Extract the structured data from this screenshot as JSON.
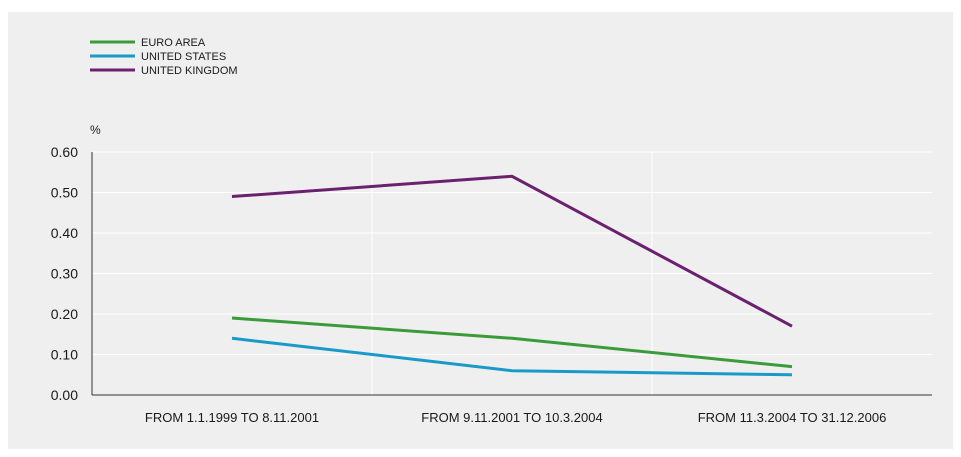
{
  "chart_data": {
    "type": "line",
    "unit": "%",
    "categories": [
      "FROM 1.1.1999 TO 8.11.2001",
      "FROM 9.11.2001 TO 10.3.2004",
      "FROM 11.3.2004 TO 31.12.2006"
    ],
    "series": [
      {
        "name": "EURO AREA",
        "color": "#3a9b3a",
        "values": [
          0.19,
          0.14,
          0.07
        ]
      },
      {
        "name": "UNITED STATES",
        "color": "#1a9ac9",
        "values": [
          0.14,
          0.06,
          0.05
        ]
      },
      {
        "name": "UNITED KINGDOM",
        "color": "#6b2170",
        "values": [
          0.49,
          0.54,
          0.17
        ]
      }
    ],
    "ylim": [
      0,
      0.6
    ],
    "yticks": [
      "0.00",
      "0.10",
      "0.20",
      "0.30",
      "0.40",
      "0.50",
      "0.60"
    ],
    "grid": true,
    "legend_position": "top-left"
  }
}
